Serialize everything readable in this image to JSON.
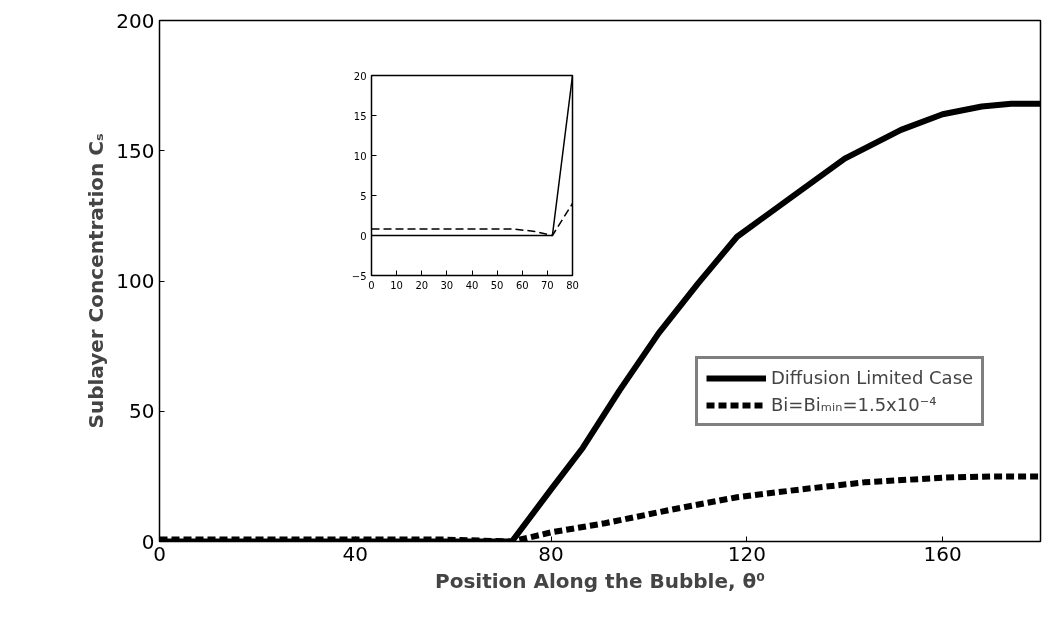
{
  "chart_data": [
    {
      "type": "line",
      "xlabel": "Position Along the Bubble, θ⁰",
      "ylabel": "Sublayer Concentration Cₛ",
      "xlim": [
        0,
        180
      ],
      "ylim": [
        0,
        200
      ],
      "xticks": [
        0,
        40,
        80,
        120,
        160
      ],
      "yticks": [
        0,
        50,
        100,
        150,
        200
      ],
      "legend": "right",
      "grid": false,
      "series": [
        {
          "name": "Diffusion Limited Case",
          "color": "#000000",
          "line_style": "solid",
          "x": [
            0,
            72,
            80,
            86.5,
            94,
            102,
            110,
            118,
            129,
            140,
            151.5,
            160,
            168,
            174,
            180
          ],
          "values": [
            0,
            0,
            20,
            36,
            58,
            80,
            99,
            117,
            132,
            147,
            158,
            164,
            167,
            168,
            168
          ]
        },
        {
          "name": "Bi=Biₘᵢₙ=1.5x10⁻⁴",
          "color": "#000000",
          "line_style": "dashed",
          "x": [
            0,
            57,
            72,
            80,
            91,
            104,
            118,
            131,
            144,
            160,
            170,
            180
          ],
          "values": [
            0.8,
            0.8,
            0,
            3.5,
            7,
            12,
            17,
            20,
            22.7,
            24.5,
            25,
            25
          ]
        }
      ]
    },
    {
      "type": "line",
      "xlim": [
        0,
        80
      ],
      "ylim": [
        -5,
        20
      ],
      "xticks": [
        0,
        10,
        20,
        30,
        40,
        50,
        60,
        70,
        80
      ],
      "yticks": [
        -5,
        0,
        5,
        10,
        15,
        20
      ],
      "legend": false,
      "grid": false,
      "series": [
        {
          "color": "#000000",
          "line_style": "solid",
          "x": [
            0,
            72,
            80
          ],
          "values": [
            0,
            0,
            20
          ]
        },
        {
          "color": "#000000",
          "line_style": "dashed",
          "x": [
            0,
            57,
            65,
            72,
            80
          ],
          "values": [
            0.8,
            0.8,
            0.5,
            0,
            4
          ]
        }
      ]
    }
  ]
}
